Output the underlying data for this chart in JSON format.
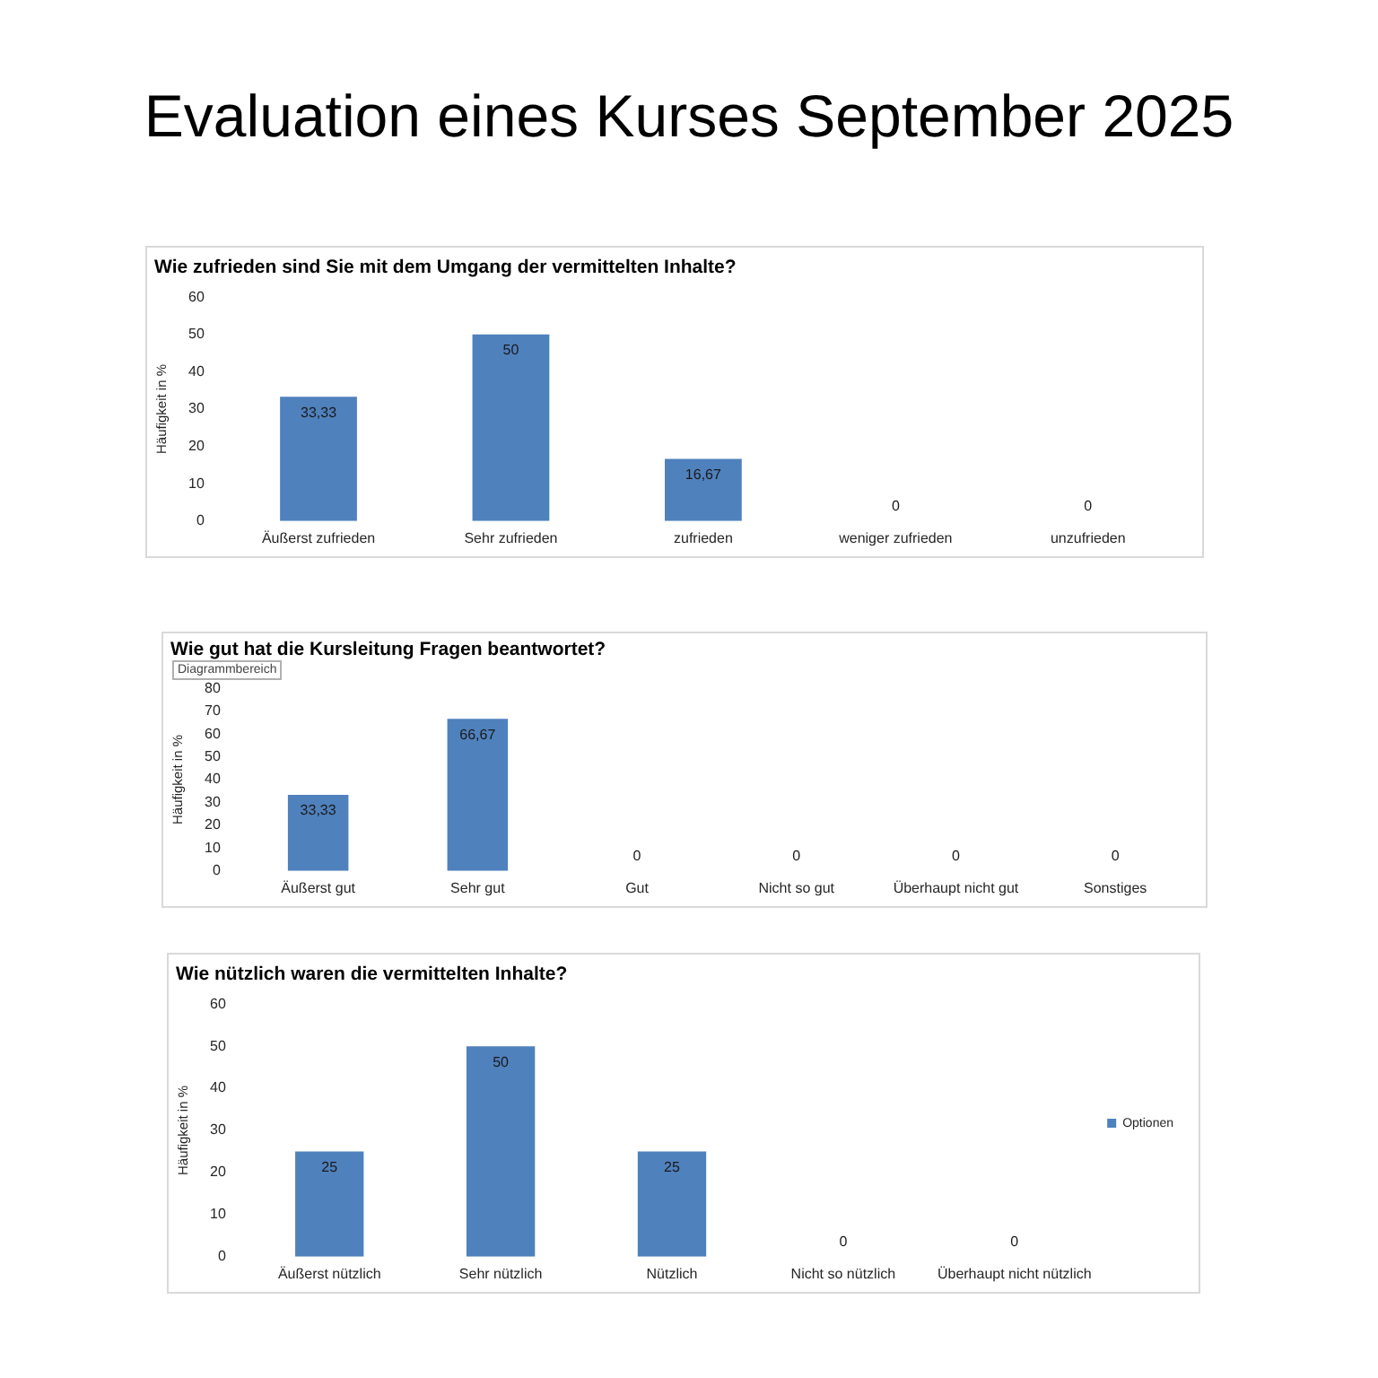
{
  "chart_data": [
    {
      "type": "other",
      "title": "Evaluation eines Kurses September 2025"
    },
    {
      "type": "bar",
      "title": "Wie zufrieden sind Sie mit dem Umgang der vermittelten Inhalte?",
      "ylabel": "Häufigkeit in %",
      "categories": [
        "Äußerst zufrieden",
        "Sehr zufrieden",
        "zufrieden",
        "weniger zufrieden",
        "unzufrieden"
      ],
      "values": [
        33.33,
        50,
        16.67,
        0,
        0
      ],
      "value_labels": [
        "33,33",
        "50",
        "16,67",
        "0",
        "0"
      ],
      "color": "#4f81bd",
      "ylim": [
        0,
        60
      ],
      "yticks": [
        0,
        10,
        20,
        30,
        40,
        50,
        60
      ],
      "grid": false,
      "legend": false
    },
    {
      "type": "bar",
      "title": "Wie gut hat die Kursleitung Fragen beantwortet?",
      "annotations": [
        "Diagrammbereich"
      ],
      "ylabel": "Häufigkeit in %",
      "categories": [
        "Äußerst gut",
        "Sehr gut",
        "Gut",
        "Nicht so gut",
        "Überhaupt nicht gut",
        "Sonstiges"
      ],
      "values": [
        33.33,
        66.67,
        0,
        0,
        0,
        0
      ],
      "value_labels": [
        "33,33",
        "66,67",
        "0",
        "0",
        "0",
        "0"
      ],
      "color": "#4f81bd",
      "ylim": [
        0,
        80
      ],
      "yticks": [
        0,
        10,
        20,
        30,
        40,
        50,
        60,
        70,
        80
      ],
      "grid": false,
      "legend": false
    },
    {
      "type": "bar",
      "title": "Wie nützlich waren die vermittelten Inhalte?",
      "ylabel": "Häufigkeit in %",
      "categories": [
        "Äußerst nützlich",
        "Sehr nützlich",
        "Nützlich",
        "Nicht so nützlich",
        "Überhaupt nicht nützlich"
      ],
      "series": [
        {
          "name": "Optionen",
          "color": "#4f81bd",
          "values": [
            25,
            50,
            25,
            0,
            0
          ],
          "value_labels": [
            "25",
            "50",
            "25",
            "0",
            "0"
          ]
        }
      ],
      "ylim": [
        0,
        60
      ],
      "yticks": [
        0,
        10,
        20,
        30,
        40,
        50,
        60
      ],
      "grid": false,
      "legend": "right"
    }
  ]
}
